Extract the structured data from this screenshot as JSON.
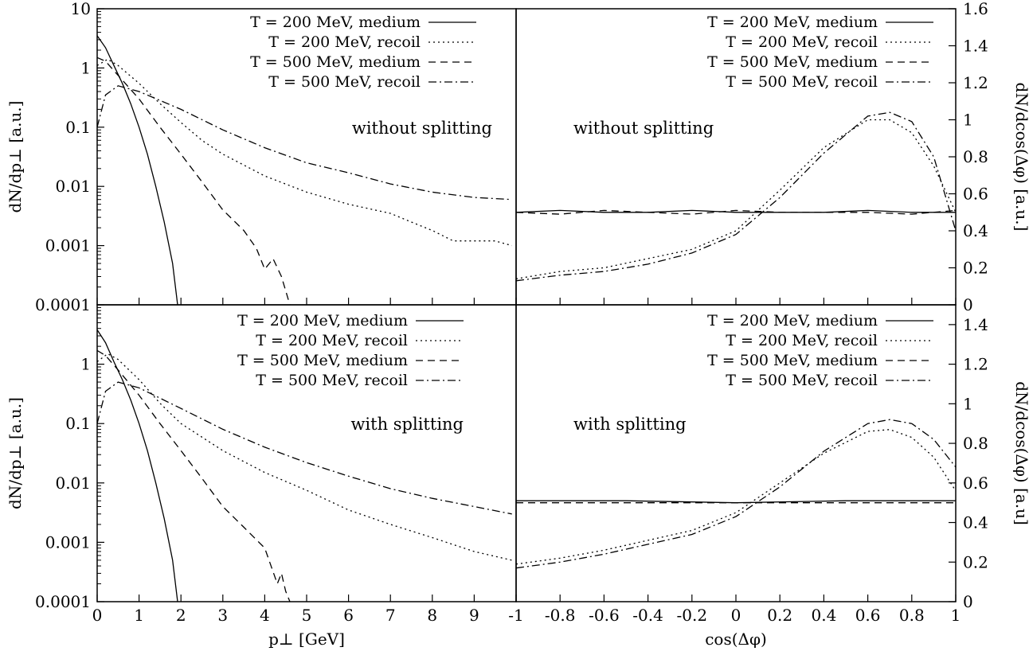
{
  "chart_data": [
    {
      "type": "line",
      "panel": "top-left",
      "annotation": "without splitting",
      "xlabel": "",
      "ylabel": "dN/dp⊥ [a.u.]",
      "xlim": [
        0,
        10
      ],
      "ylim": [
        0.0001,
        10
      ],
      "yscale": "log",
      "grid": false,
      "legend": "top-right",
      "xticks": [],
      "yticks": [
        "10",
        "1",
        "0.1",
        "0.01",
        "0.001",
        "0.0001"
      ],
      "series": [
        {
          "name": "T = 200 MeV, medium",
          "style": "solid",
          "x": [
            0,
            0.2,
            0.4,
            0.6,
            0.8,
            1.0,
            1.2,
            1.4,
            1.6,
            1.8,
            1.92
          ],
          "y": [
            3.5,
            2.2,
            1.1,
            0.55,
            0.25,
            0.1,
            0.035,
            0.01,
            0.0025,
            0.0005,
            0.0001
          ]
        },
        {
          "name": "T = 200 MeV, recoil",
          "style": "dotted",
          "x": [
            0,
            0.25,
            0.5,
            1,
            1.5,
            2,
            2.5,
            3,
            4,
            5,
            6,
            7,
            7.5,
            8,
            8.5,
            9,
            9.5,
            9.9
          ],
          "y": [
            1.1,
            1.4,
            1.1,
            0.55,
            0.25,
            0.12,
            0.06,
            0.035,
            0.015,
            0.008,
            0.005,
            0.0035,
            0.0025,
            0.0018,
            0.0012,
            0.0012,
            0.0012,
            0.001
          ]
        },
        {
          "name": "T = 500 MeV, medium",
          "style": "dashed",
          "x": [
            0,
            0.2,
            0.5,
            1,
            1.5,
            2,
            2.5,
            3,
            3.5,
            3.8,
            4.0,
            4.2,
            4.4,
            4.6
          ],
          "y": [
            1.5,
            1.3,
            0.75,
            0.3,
            0.1,
            0.035,
            0.012,
            0.004,
            0.0018,
            0.0009,
            0.0004,
            0.0006,
            0.0003,
            0.0001
          ]
        },
        {
          "name": "T = 500 MeV, recoil",
          "style": "dashdot",
          "x": [
            0,
            0.2,
            0.5,
            1,
            2,
            3,
            4,
            5,
            6,
            7,
            8,
            9,
            9.9
          ],
          "y": [
            0.1,
            0.35,
            0.5,
            0.4,
            0.2,
            0.09,
            0.045,
            0.025,
            0.017,
            0.011,
            0.008,
            0.0065,
            0.006
          ]
        }
      ]
    },
    {
      "type": "line",
      "panel": "top-right",
      "annotation": "without splitting",
      "xlabel": "",
      "ylabel": "dN/dcos(Δφ) [a.u.]",
      "xlim": [
        -1,
        1
      ],
      "ylim": [
        0,
        1.6
      ],
      "yscale": "linear",
      "grid": false,
      "legend": "top-right",
      "xticks": [],
      "yticks": [
        "0",
        "0.2",
        "0.4",
        "0.6",
        "0.8",
        "1",
        "1.2",
        "1.4",
        "1.6"
      ],
      "series": [
        {
          "name": "T = 200 MeV, medium",
          "style": "solid",
          "x": [
            -1,
            -0.8,
            -0.6,
            -0.4,
            -0.2,
            0,
            0.2,
            0.4,
            0.6,
            0.8,
            1
          ],
          "y": [
            0.5,
            0.51,
            0.5,
            0.5,
            0.51,
            0.5,
            0.5,
            0.5,
            0.51,
            0.5,
            0.5
          ]
        },
        {
          "name": "T = 200 MeV, recoil",
          "style": "dotted",
          "x": [
            -1,
            -0.8,
            -0.6,
            -0.4,
            -0.2,
            0,
            0.2,
            0.4,
            0.6,
            0.7,
            0.8,
            0.9,
            1
          ],
          "y": [
            0.14,
            0.18,
            0.2,
            0.25,
            0.3,
            0.4,
            0.62,
            0.85,
            1.0,
            1.0,
            0.93,
            0.75,
            0.5
          ]
        },
        {
          "name": "T = 500 MeV, medium",
          "style": "dashed",
          "x": [
            -1,
            -0.8,
            -0.6,
            -0.4,
            -0.2,
            0,
            0.2,
            0.4,
            0.6,
            0.8,
            1
          ],
          "y": [
            0.5,
            0.49,
            0.51,
            0.5,
            0.49,
            0.51,
            0.5,
            0.5,
            0.5,
            0.49,
            0.51
          ]
        },
        {
          "name": "T = 500 MeV, recoil",
          "style": "dashdot",
          "x": [
            -1,
            -0.8,
            -0.6,
            -0.4,
            -0.2,
            0,
            0.2,
            0.4,
            0.6,
            0.7,
            0.8,
            0.9,
            1
          ],
          "y": [
            0.13,
            0.16,
            0.18,
            0.22,
            0.28,
            0.38,
            0.58,
            0.82,
            1.02,
            1.04,
            0.99,
            0.8,
            0.4
          ]
        }
      ]
    },
    {
      "type": "line",
      "panel": "bottom-left",
      "annotation": "with splitting",
      "xlabel": "p⊥ [GeV]",
      "ylabel": "dN/dp⊥ [a.u.]",
      "xlim": [
        0,
        10
      ],
      "ylim": [
        0.0001,
        10
      ],
      "yscale": "log",
      "grid": false,
      "legend": "top-right",
      "xticks": [
        "0",
        "1",
        "2",
        "3",
        "4",
        "5",
        "6",
        "7",
        "8",
        "9"
      ],
      "yticks": [
        "1",
        "0.1",
        "0.01",
        "0.001",
        "0.0001"
      ],
      "series": [
        {
          "name": "T = 200 MeV, medium",
          "style": "solid",
          "x": [
            0,
            0.2,
            0.4,
            0.6,
            0.8,
            1.0,
            1.2,
            1.4,
            1.6,
            1.8,
            1.92
          ],
          "y": [
            3.8,
            2.3,
            1.1,
            0.55,
            0.25,
            0.1,
            0.035,
            0.01,
            0.0025,
            0.0005,
            0.0001
          ]
        },
        {
          "name": "T = 200 MeV, recoil",
          "style": "dotted",
          "x": [
            0,
            0.25,
            0.5,
            1,
            1.5,
            2,
            3,
            4,
            5,
            6,
            7,
            8,
            9,
            9.9
          ],
          "y": [
            1.1,
            1.5,
            1.2,
            0.55,
            0.22,
            0.1,
            0.035,
            0.015,
            0.0075,
            0.0035,
            0.002,
            0.0012,
            0.0007,
            0.0005
          ]
        },
        {
          "name": "T = 500 MeV, medium",
          "style": "dashed",
          "x": [
            0,
            0.2,
            0.5,
            1,
            1.5,
            2,
            2.5,
            3,
            3.5,
            4,
            4.3,
            4.4,
            4.5,
            4.6
          ],
          "y": [
            1.7,
            1.4,
            0.8,
            0.3,
            0.1,
            0.035,
            0.012,
            0.004,
            0.0018,
            0.0008,
            0.0002,
            0.0003,
            0.00015,
            0.0001
          ]
        },
        {
          "name": "T = 500 MeV, recoil",
          "style": "dashdot",
          "x": [
            0,
            0.2,
            0.5,
            1,
            2,
            3,
            4,
            5,
            6,
            7,
            8,
            9,
            9.9
          ],
          "y": [
            0.1,
            0.35,
            0.5,
            0.4,
            0.18,
            0.08,
            0.04,
            0.022,
            0.013,
            0.008,
            0.0055,
            0.004,
            0.003
          ]
        }
      ]
    },
    {
      "type": "line",
      "panel": "bottom-right",
      "annotation": "with splitting",
      "xlabel": "cos(Δφ)",
      "ylabel": "dN/dcos(Δφ) [a.u]",
      "xlim": [
        -1,
        1
      ],
      "ylim": [
        0,
        1.5
      ],
      "yscale": "linear",
      "grid": false,
      "legend": "top-right",
      "xticks": [
        "-1",
        "-0.8",
        "-0.6",
        "-0.4",
        "-0.2",
        "0",
        "0.2",
        "0.4",
        "0.6",
        "0.8",
        "1"
      ],
      "yticks": [
        "0",
        "0.2",
        "0.4",
        "0.6",
        "0.8",
        "1",
        "1.2",
        "1.4"
      ],
      "series": [
        {
          "name": "T = 200 MeV, medium",
          "style": "solid",
          "x": [
            -1,
            -0.5,
            0,
            0.5,
            1
          ],
          "y": [
            0.51,
            0.51,
            0.5,
            0.51,
            0.51
          ]
        },
        {
          "name": "T = 200 MeV, recoil",
          "style": "dotted",
          "x": [
            -1,
            -0.8,
            -0.6,
            -0.4,
            -0.2,
            0,
            0.2,
            0.4,
            0.6,
            0.7,
            0.8,
            0.9,
            1
          ],
          "y": [
            0.19,
            0.22,
            0.26,
            0.31,
            0.36,
            0.45,
            0.6,
            0.75,
            0.86,
            0.87,
            0.83,
            0.73,
            0.56
          ]
        },
        {
          "name": "T = 500 MeV, medium",
          "style": "dashed",
          "x": [
            -1,
            -0.5,
            0,
            0.5,
            1
          ],
          "y": [
            0.5,
            0.5,
            0.5,
            0.5,
            0.5
          ]
        },
        {
          "name": "T = 500 MeV, recoil",
          "style": "dashdot",
          "x": [
            -1,
            -0.8,
            -0.6,
            -0.4,
            -0.2,
            0,
            0.2,
            0.4,
            0.6,
            0.7,
            0.8,
            0.9,
            1
          ],
          "y": [
            0.17,
            0.2,
            0.24,
            0.29,
            0.34,
            0.43,
            0.58,
            0.76,
            0.9,
            0.92,
            0.9,
            0.82,
            0.68
          ]
        }
      ]
    }
  ]
}
